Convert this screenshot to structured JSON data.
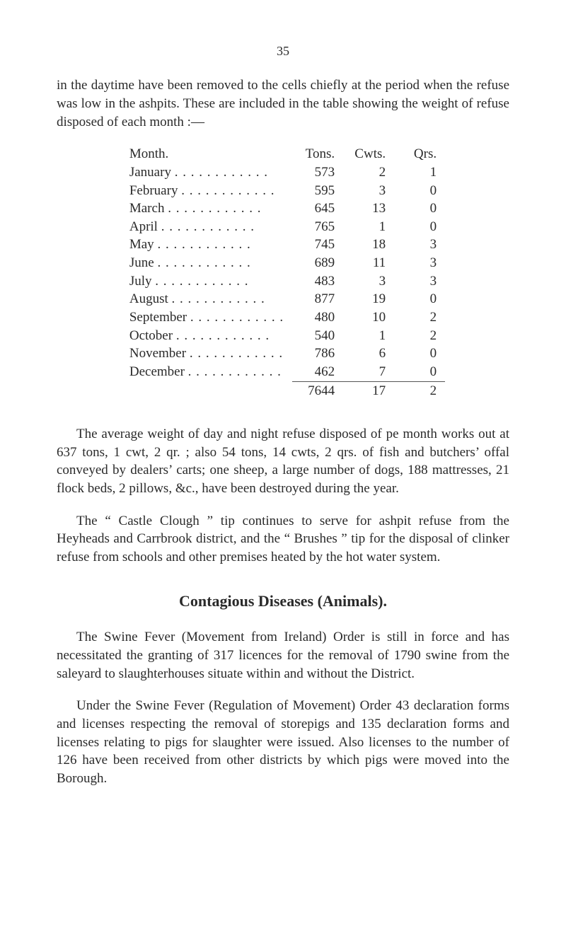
{
  "page_number": "35",
  "intro_paragraph": "in the daytime have been removed to the cells chiefly at the period when the refuse was low in the ashpits. These are included in the table showing the weight of refuse disposed of each month :—",
  "table": {
    "headers": {
      "month": "Month.",
      "tons": "Tons.",
      "cwts": "Cwts.",
      "qrs": "Qrs."
    },
    "rows": [
      {
        "month": "January",
        "tons": "573",
        "cwts": "2",
        "qrs": "1"
      },
      {
        "month": "February",
        "tons": "595",
        "cwts": "3",
        "qrs": "0"
      },
      {
        "month": "March",
        "tons": "645",
        "cwts": "13",
        "qrs": "0"
      },
      {
        "month": "April",
        "tons": "765",
        "cwts": "1",
        "qrs": "0"
      },
      {
        "month": "May",
        "tons": "745",
        "cwts": "18",
        "qrs": "3"
      },
      {
        "month": "June",
        "tons": "689",
        "cwts": "11",
        "qrs": "3"
      },
      {
        "month": "July",
        "tons": "483",
        "cwts": "3",
        "qrs": "3"
      },
      {
        "month": "August",
        "tons": "877",
        "cwts": "19",
        "qrs": "0"
      },
      {
        "month": "September",
        "tons": "480",
        "cwts": "10",
        "qrs": "2"
      },
      {
        "month": "October",
        "tons": "540",
        "cwts": "1",
        "qrs": "2"
      },
      {
        "month": "November",
        "tons": "786",
        "cwts": "6",
        "qrs": "0"
      },
      {
        "month": "December",
        "tons": "462",
        "cwts": "7",
        "qrs": "0"
      }
    ],
    "totals": {
      "tons": "7644",
      "cwts": "17",
      "qrs": "2"
    }
  },
  "para1": "The average weight of day and night refuse disposed of pe month works out at 637 tons, 1 cwt, 2 qr. ; also 54 tons, 14 cwts, 2 qrs. of fish and butchers’ offal conveyed by dealers’ carts; one sheep, a large number of dogs, 188 mattresses, 21 flock beds, 2 pillows, &c., have been destroyed during the year.",
  "para2": "The “ Castle Clough ” tip continues to serve for ashpit refuse from the Heyheads and Carrbrook district, and the “ Brushes ” tip for the disposal of clinker refuse from schools and other premises heated by the hot water system.",
  "section_title": "Contagious Diseases (Animals).",
  "para3": "The Swine Fever (Movement from Ireland) Order is still in force and has necessitated the granting of 317 licences for the removal of 1790 swine from the saleyard to slaughterhouses situate within and without the District.",
  "para4": "Under the Swine Fever (Regulation of Movement) Order 43 declaration forms and licenses respecting the removal of storepigs and 135 declaration forms and licenses relating to pigs for slaughter were issued. Also licenses to the number of 126 have been received from other districts by which pigs were moved into the Borough.",
  "dots": ". . . . . . . . . . . ."
}
